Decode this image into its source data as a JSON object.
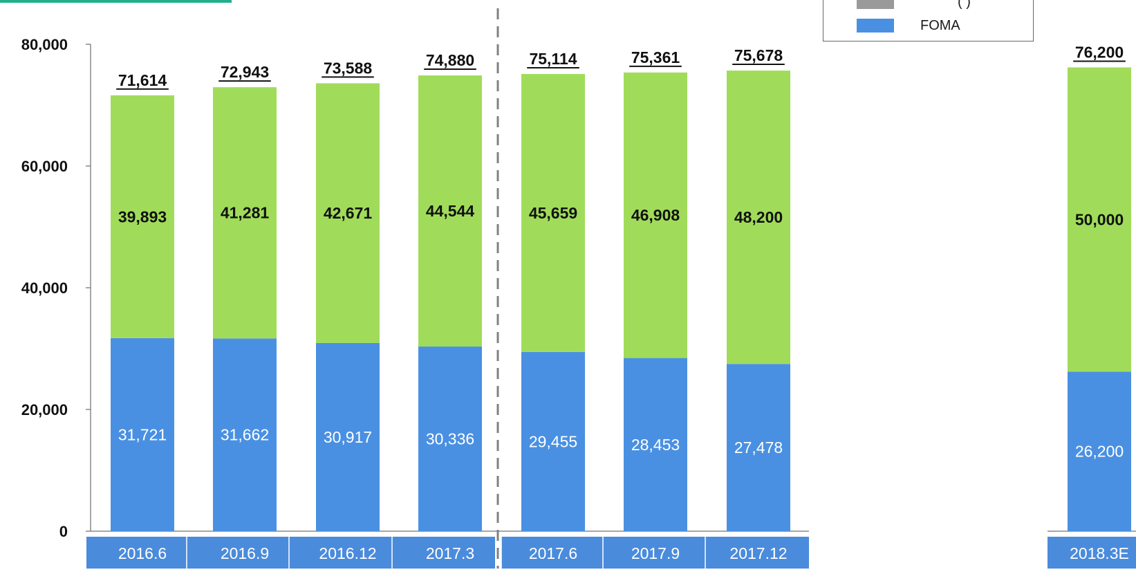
{
  "chart_data": {
    "type": "bar",
    "stacked": true,
    "categories": [
      "2016.6",
      "2016.9",
      "2016.12",
      "2017.3",
      "2017.6",
      "2017.9",
      "2017.12",
      "2018.3E"
    ],
    "series": [
      {
        "name": "FOMA",
        "values": [
          31721,
          31662,
          30917,
          30336,
          29455,
          28453,
          27478,
          26200
        ],
        "labels": [
          "31,721",
          "31,662",
          "30,917",
          "30,336",
          "29,455",
          "28,453",
          "27,478",
          "26,200"
        ]
      },
      {
        "name": "",
        "values": [
          39893,
          41281,
          42671,
          44544,
          45659,
          46908,
          48200,
          50000
        ],
        "labels": [
          "39,893",
          "41,281",
          "42,671",
          "44,544",
          "45,659",
          "46,908",
          "48,200",
          "50,000"
        ]
      }
    ],
    "totals": [
      "71,614",
      "72,943",
      "73,588",
      "74,880",
      "75,114",
      "75,361",
      "75,678",
      "76,200"
    ],
    "total_values": [
      71614,
      72943,
      73588,
      74880,
      75114,
      75361,
      75678,
      76200
    ],
    "ylim": [
      0,
      80000
    ],
    "yticks": [
      "0",
      "20,000",
      "40,000",
      "60,000",
      "80,000"
    ],
    "ytick_values": [
      0,
      20000,
      40000,
      60000,
      80000
    ],
    "xlabel": "",
    "ylabel": "",
    "grid": false,
    "legend_position": "top-right",
    "legend_partial_text": "(    )",
    "colors": {
      "FOMA": "#4a90e2",
      "other": "#a0dc5a",
      "category_band": "#4a8bdc",
      "divider": "#808080",
      "accent": "#22b08c"
    }
  }
}
